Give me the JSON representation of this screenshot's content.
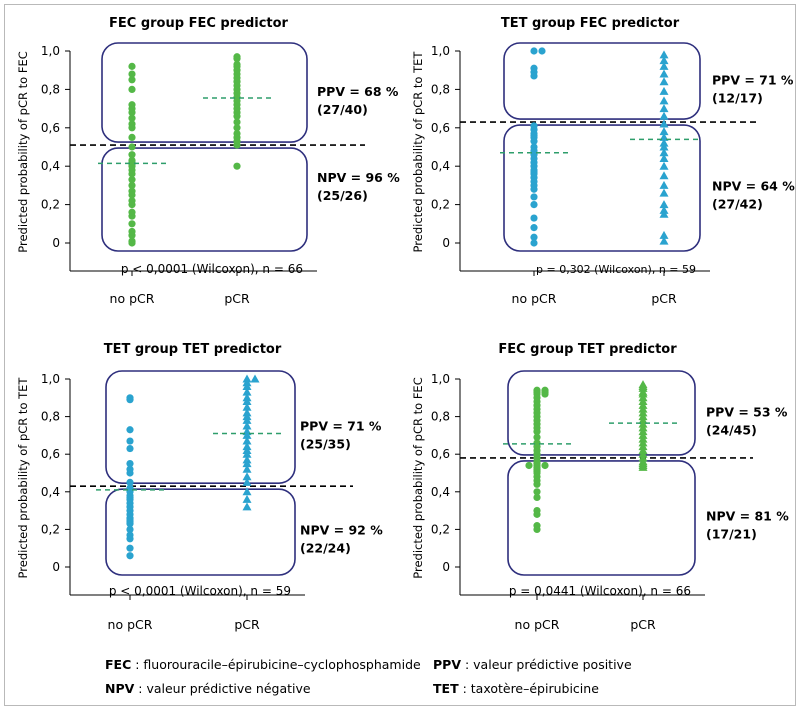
{
  "colors": {
    "green": "#54b847",
    "blue": "#2aa3cf",
    "box": "#2e2f7d",
    "threshold": "#000000",
    "median": "#2e9e6b"
  },
  "chart_data": [
    {
      "type": "scatter",
      "title": "FEC group FEC predictor",
      "ylabel": "Predicted probability of pCR to FEC",
      "categories": [
        "no pCR",
        "pCR"
      ],
      "ylim": [
        0,
        1.0
      ],
      "yticks": [
        "0",
        "0,2",
        "0,4",
        "0,6",
        "0,8",
        "1,0"
      ],
      "marker": "circle",
      "color": "green",
      "threshold": 0.51,
      "medians": [
        0.415,
        0.755
      ],
      "ppv_label": [
        "PPV = 68 %",
        "(27/40)"
      ],
      "npv_label": [
        "NPV = 96 %",
        "(25/26)"
      ],
      "stat": "p < 0,0001 (Wilcoxon), n = 66",
      "series": [
        {
          "name": "no pCR",
          "values": [
            0.92,
            0.88,
            0.85,
            0.8,
            0.72,
            0.7,
            0.68,
            0.65,
            0.62,
            0.6,
            0.55,
            0.5,
            0.46,
            0.43,
            0.42,
            0.41,
            0.4,
            0.38,
            0.36,
            0.33,
            0.3,
            0.27,
            0.25,
            0.22,
            0.2,
            0.16,
            0.14,
            0.1,
            0.06,
            0.04,
            0.01,
            0.0
          ]
        },
        {
          "name": "pCR",
          "values": [
            0.97,
            0.96,
            0.93,
            0.92,
            0.9,
            0.88,
            0.86,
            0.84,
            0.82,
            0.8,
            0.78,
            0.76,
            0.74,
            0.72,
            0.7,
            0.68,
            0.66,
            0.63,
            0.6,
            0.57,
            0.55,
            0.53,
            0.51,
            0.4
          ]
        }
      ]
    },
    {
      "type": "scatter",
      "title": "TET group FEC predictor",
      "ylabel": "Predicted probability of pCR to TET",
      "categories": [
        "no pCR",
        "pCR"
      ],
      "ylim": [
        0,
        1.0
      ],
      "yticks": [
        "0",
        "0,2",
        "0,4",
        "0,6",
        "0,8",
        "1,0"
      ],
      "marker": "mixed",
      "color": "blue",
      "threshold": 0.63,
      "medians": [
        0.47,
        0.54
      ],
      "ppv_label": [
        "PPV = 71 %",
        "(12/17)"
      ],
      "npv_label": [
        "NPV = 64 %",
        "(27/42)"
      ],
      "stat": "p = 0,302 (Wilcoxon), n = 59",
      "series": [
        {
          "name": "no pCR",
          "values": [
            1.0,
            1.0,
            0.91,
            0.89,
            0.87,
            0.61,
            0.59,
            0.57,
            0.56,
            0.55,
            0.53,
            0.5,
            0.48,
            0.46,
            0.44,
            0.42,
            0.4,
            0.38,
            0.37,
            0.36,
            0.34,
            0.32,
            0.3,
            0.28,
            0.24,
            0.2,
            0.13,
            0.08,
            0.03,
            0.0
          ]
        },
        {
          "name": "pCR",
          "values": [
            0.98,
            0.95,
            0.92,
            0.88,
            0.84,
            0.79,
            0.74,
            0.7,
            0.66,
            0.62,
            0.58,
            0.55,
            0.52,
            0.5,
            0.47,
            0.44,
            0.4,
            0.35,
            0.3,
            0.26,
            0.2,
            0.17,
            0.15,
            0.04,
            0.01
          ]
        }
      ]
    },
    {
      "type": "scatter",
      "title": "TET group TET predictor",
      "ylabel": "Predicted probability of pCR to TET",
      "categories": [
        "no pCR",
        "pCR"
      ],
      "ylim": [
        0,
        1.0
      ],
      "yticks": [
        "0",
        "0,2",
        "0,4",
        "0,6",
        "0,8",
        "1,0"
      ],
      "marker": "mixed",
      "color": "blue",
      "threshold": 0.43,
      "medians": [
        0.41,
        0.71
      ],
      "ppv_label": [
        "PPV = 71 %",
        "(25/35)"
      ],
      "npv_label": [
        "NPV = 92 %",
        "(22/24)"
      ],
      "stat": "p < 0,0001 (Wilcoxon), n = 59",
      "series": [
        {
          "name": "no pCR",
          "values": [
            0.9,
            0.89,
            0.73,
            0.67,
            0.63,
            0.55,
            0.52,
            0.5,
            0.45,
            0.42,
            0.4,
            0.38,
            0.37,
            0.36,
            0.34,
            0.32,
            0.3,
            0.28,
            0.26,
            0.25,
            0.24,
            0.23,
            0.2,
            0.17,
            0.15,
            0.1,
            0.06
          ]
        },
        {
          "name": "pCR",
          "values": [
            1.0,
            1.0,
            0.98,
            0.96,
            0.93,
            0.9,
            0.88,
            0.85,
            0.82,
            0.8,
            0.78,
            0.75,
            0.72,
            0.7,
            0.67,
            0.64,
            0.62,
            0.6,
            0.57,
            0.55,
            0.52,
            0.48,
            0.45,
            0.4,
            0.36,
            0.32
          ]
        }
      ]
    },
    {
      "type": "scatter",
      "title": "FEC group TET predictor",
      "ylabel": "Predicted probability of pCR to FEC",
      "categories": [
        "no pCR",
        "pCR"
      ],
      "ylim": [
        0,
        1.0
      ],
      "yticks": [
        "0",
        "0,2",
        "0,4",
        "0,6",
        "0,8",
        "1,0"
      ],
      "marker": "mixed",
      "color": "green",
      "threshold": 0.58,
      "medians": [
        0.655,
        0.765
      ],
      "ppv_label": [
        "PPV = 53 %",
        "(24/45)"
      ],
      "npv_label": [
        "NPV = 81 %",
        "(17/21)"
      ],
      "stat": "p = 0,0441 (Wilcoxon), n = 66",
      "series": [
        {
          "name": "no pCR",
          "values": [
            0.94,
            0.94,
            0.93,
            0.93,
            0.92,
            0.92,
            0.9,
            0.88,
            0.86,
            0.84,
            0.82,
            0.8,
            0.78,
            0.76,
            0.74,
            0.72,
            0.69,
            0.66,
            0.64,
            0.62,
            0.6,
            0.58,
            0.56,
            0.55,
            0.54,
            0.54,
            0.54,
            0.53,
            0.52,
            0.51,
            0.5,
            0.48,
            0.46,
            0.44,
            0.4,
            0.37,
            0.3,
            0.28,
            0.22,
            0.2
          ]
        },
        {
          "name": "pCR",
          "values": [
            0.97,
            0.96,
            0.95,
            0.93,
            0.92,
            0.9,
            0.88,
            0.86,
            0.84,
            0.82,
            0.8,
            0.78,
            0.76,
            0.74,
            0.72,
            0.7,
            0.68,
            0.66,
            0.64,
            0.62,
            0.6,
            0.58,
            0.56,
            0.55,
            0.54,
            0.53
          ]
        }
      ]
    }
  ],
  "legend": [
    {
      "abbr": "FEC",
      "text": " : fluorouracile–épirubicine–cyclophosphamide"
    },
    {
      "abbr": "PPV",
      "text": " : valeur prédictive positive"
    },
    {
      "abbr": "NPV",
      "text": " : valeur prédictive négative"
    },
    {
      "abbr": "TET",
      "text": " : taxotère–épirubicine"
    }
  ]
}
